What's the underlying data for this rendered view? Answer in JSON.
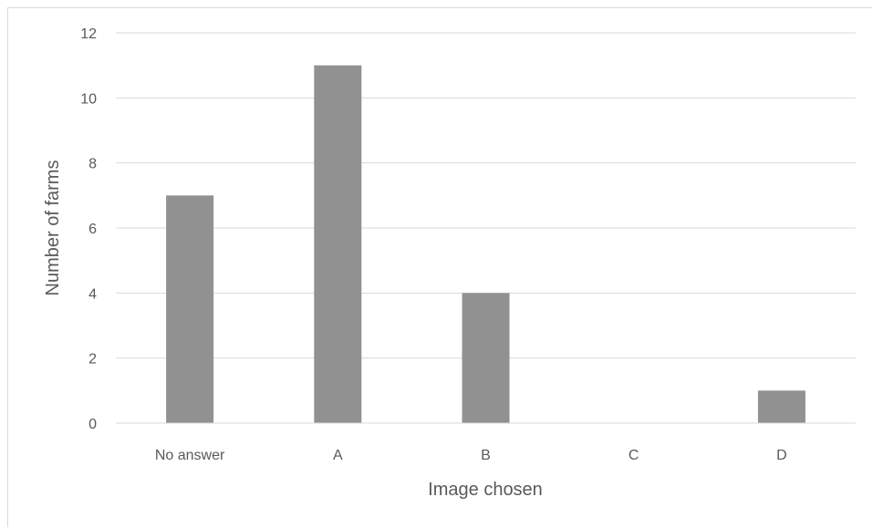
{
  "chart_data": {
    "type": "bar",
    "title": "",
    "xlabel": "Image chosen",
    "ylabel": "Number of farms",
    "categories": [
      "No answer",
      "A",
      "B",
      "C",
      "D"
    ],
    "values": [
      7,
      11,
      4,
      0,
      1
    ],
    "ylim": [
      0,
      12
    ],
    "yticks": [
      0,
      2,
      4,
      6,
      8,
      10,
      12
    ],
    "grid": true,
    "legend": "none",
    "bar_color": "#919191"
  }
}
